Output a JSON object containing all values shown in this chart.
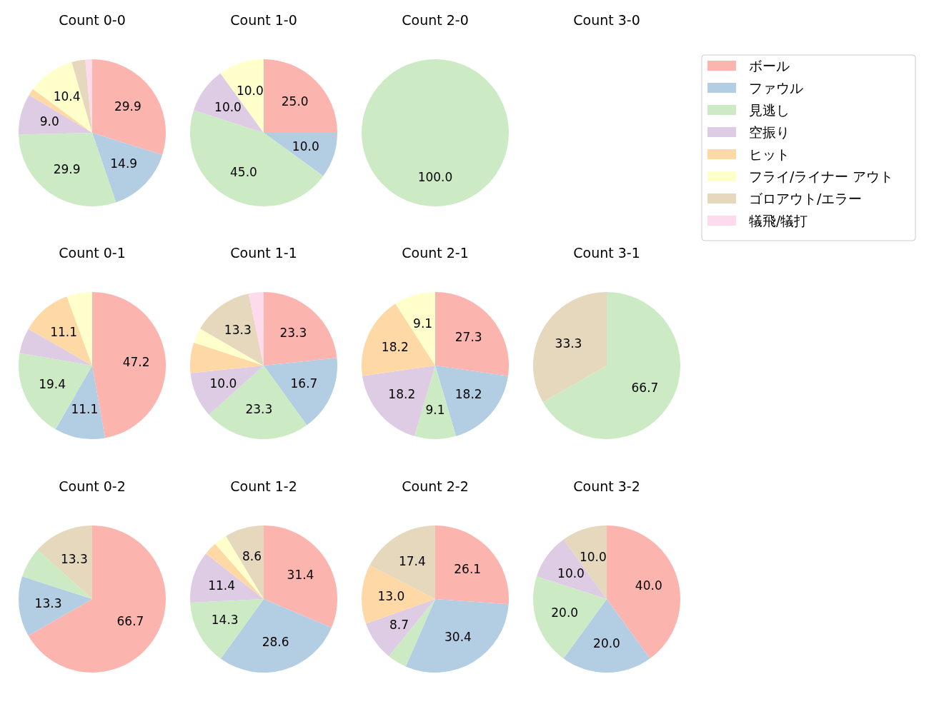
{
  "chart_data": [
    {
      "type": "pie",
      "title": "Count 0-0",
      "legend": "right",
      "categories": [
        "ボール",
        "ファウル",
        "見逃し",
        "空振り",
        "ヒット",
        "フライ/ライナー アウト",
        "ゴロアウト/エラー",
        "犠飛/犠打"
      ],
      "values": [
        29.9,
        14.9,
        29.9,
        9.0,
        1.5,
        10.4,
        3.0,
        1.5
      ],
      "value_labels": [
        "29.9",
        "14.9",
        "29.9",
        "9.0",
        null,
        "10.4",
        null,
        null
      ],
      "colors": [
        "#fbb4ae",
        "#b3cde3",
        "#ccebc5",
        "#decbe4",
        "#fed9a6",
        "#ffffcc",
        "#e5d8bd",
        "#fddaec"
      ]
    },
    {
      "type": "pie",
      "title": "Count 1-0",
      "categories": [
        null,
        null,
        null,
        null,
        null
      ],
      "values": [
        25.0,
        10.0,
        45.0,
        10.0,
        10.0
      ],
      "value_labels": [
        "25.0",
        "10.0",
        "45.0",
        "10.0",
        "10.0"
      ],
      "colors": [
        "#fbb4ae",
        "#b3cde3",
        "#ccebc5",
        "#decbe4",
        "#ffffcc"
      ]
    },
    {
      "type": "pie",
      "title": "Count 2-0",
      "categories": [
        null
      ],
      "values": [
        100.0
      ],
      "value_labels": [
        "100.0"
      ],
      "colors": [
        "#ccebc5"
      ]
    },
    {
      "type": "other",
      "title": "Count 3-0"
    },
    {
      "type": "pie",
      "title": "Count 0-1",
      "categories": [
        null,
        null,
        null,
        null,
        null,
        null
      ],
      "values": [
        47.2,
        11.1,
        19.4,
        5.6,
        11.1,
        5.6
      ],
      "value_labels": [
        "47.2",
        "11.1",
        "19.4",
        null,
        "11.1",
        null
      ],
      "colors": [
        "#fbb4ae",
        "#b3cde3",
        "#ccebc5",
        "#decbe4",
        "#fed9a6",
        "#ffffcc"
      ]
    },
    {
      "type": "pie",
      "title": "Count 1-1",
      "categories": [
        null,
        null,
        null,
        null,
        null,
        null,
        null,
        null
      ],
      "values": [
        23.3,
        16.7,
        23.3,
        10.0,
        6.7,
        3.3,
        13.3,
        3.3
      ],
      "value_labels": [
        "23.3",
        "16.7",
        "23.3",
        "10.0",
        null,
        null,
        "13.3",
        null
      ],
      "colors": [
        "#fbb4ae",
        "#b3cde3",
        "#ccebc5",
        "#decbe4",
        "#fed9a6",
        "#ffffcc",
        "#e5d8bd",
        "#fddaec"
      ]
    },
    {
      "type": "pie",
      "title": "Count 2-1",
      "categories": [
        null,
        null,
        null,
        null,
        null,
        null
      ],
      "values": [
        27.3,
        18.2,
        9.1,
        18.2,
        18.2,
        9.1
      ],
      "value_labels": [
        "27.3",
        "18.2",
        "9.1",
        "18.2",
        "18.2",
        "9.1"
      ],
      "colors": [
        "#fbb4ae",
        "#b3cde3",
        "#ccebc5",
        "#decbe4",
        "#fed9a6",
        "#ffffcc"
      ]
    },
    {
      "type": "pie",
      "title": "Count 3-1",
      "categories": [
        null,
        null
      ],
      "values": [
        66.7,
        33.3
      ],
      "value_labels": [
        "66.7",
        "33.3"
      ],
      "colors": [
        "#ccebc5",
        "#e5d8bd"
      ]
    },
    {
      "type": "pie",
      "title": "Count 0-2",
      "categories": [
        null,
        null,
        null,
        null
      ],
      "values": [
        66.7,
        13.3,
        6.7,
        13.3
      ],
      "value_labels": [
        "66.7",
        "13.3",
        null,
        "13.3"
      ],
      "colors": [
        "#fbb4ae",
        "#b3cde3",
        "#ccebc5",
        "#e5d8bd"
      ]
    },
    {
      "type": "pie",
      "title": "Count 1-2",
      "categories": [
        null,
        null,
        null,
        null,
        null,
        null,
        null
      ],
      "values": [
        31.4,
        28.6,
        14.3,
        11.4,
        2.9,
        2.9,
        8.6
      ],
      "value_labels": [
        "31.4",
        "28.6",
        "14.3",
        "11.4",
        null,
        null,
        "8.6"
      ],
      "colors": [
        "#fbb4ae",
        "#b3cde3",
        "#ccebc5",
        "#decbe4",
        "#fed9a6",
        "#ffffcc",
        "#e5d8bd"
      ]
    },
    {
      "type": "pie",
      "title": "Count 2-2",
      "categories": [
        null,
        null,
        null,
        null,
        null,
        null
      ],
      "values": [
        26.1,
        30.4,
        4.3,
        8.7,
        13.0,
        17.4
      ],
      "value_labels": [
        "26.1",
        "30.4",
        null,
        "8.7",
        "13.0",
        "17.4"
      ],
      "colors": [
        "#fbb4ae",
        "#b3cde3",
        "#ccebc5",
        "#decbe4",
        "#fed9a6",
        "#e5d8bd"
      ]
    },
    {
      "type": "pie",
      "title": "Count 3-2",
      "categories": [
        null,
        null,
        null,
        null,
        null
      ],
      "values": [
        40.0,
        20.0,
        20.0,
        10.0,
        10.0
      ],
      "value_labels": [
        "40.0",
        "20.0",
        "20.0",
        "10.0",
        "10.0"
      ],
      "colors": [
        "#fbb4ae",
        "#b3cde3",
        "#ccebc5",
        "#decbe4",
        "#e5d8bd"
      ]
    }
  ]
}
